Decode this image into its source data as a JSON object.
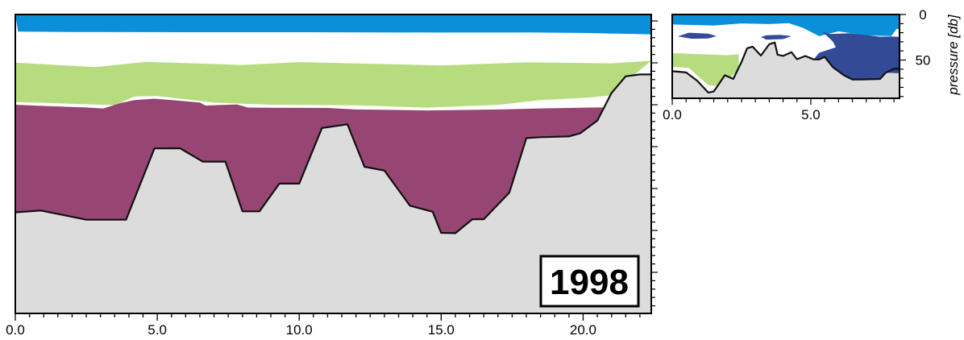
{
  "chart_data": [
    {
      "type": "area",
      "panel": "main",
      "x_tick_labels": [
        "0.0",
        "5.0",
        "10.0",
        "15.0",
        "20.0"
      ],
      "x_ticks": [
        0,
        5,
        10,
        15,
        20
      ],
      "xlim": [
        0,
        22.4
      ],
      "year_label": "1998",
      "colors": {
        "blue": "#0a8fd8",
        "green": "#b7dc7e",
        "purple": "#974673",
        "bottom": "#dcdcdc",
        "line": "#111111"
      },
      "layers": {
        "blue_bottom": [
          [
            0.1,
            21.2
          ],
          [
            2,
            21.7
          ],
          [
            6,
            22.0
          ],
          [
            10,
            22.0
          ],
          [
            15,
            22.4
          ],
          [
            18,
            22.3
          ],
          [
            20,
            22.9
          ],
          [
            22.4,
            24.6
          ]
        ],
        "green_top": [
          [
            0,
            59.8
          ],
          [
            2.8,
            65.3
          ],
          [
            4.6,
            58.8
          ],
          [
            8,
            62.6
          ],
          [
            10,
            59.1
          ],
          [
            15,
            63.2
          ],
          [
            18,
            59.4
          ],
          [
            21,
            60.6
          ],
          [
            22.4,
            57.5
          ]
        ],
        "green_bottom": [
          [
            0,
            108.7
          ],
          [
            1,
            109.6
          ],
          [
            2.5,
            111.4
          ],
          [
            3.5,
            112.4
          ],
          [
            4.2,
            101.8
          ],
          [
            5,
            101.2
          ],
          [
            7,
            109.4
          ],
          [
            9,
            112.0
          ],
          [
            12,
            112.7
          ],
          [
            14.5,
            115.6
          ],
          [
            17,
            112.1
          ],
          [
            18.5,
            106.3
          ],
          [
            20.2,
            103.1
          ],
          [
            20.9,
            100.7
          ]
        ],
        "purple_top": [
          [
            0,
            112.0
          ],
          [
            1,
            113.5
          ],
          [
            2.5,
            115.4
          ],
          [
            3.1,
            116.6
          ],
          [
            3.7,
            109.9
          ],
          [
            4.2,
            106.2
          ],
          [
            4.9,
            104.5
          ],
          [
            5.6,
            106.5
          ],
          [
            6.5,
            109.2
          ],
          [
            6.7,
            113.0
          ],
          [
            7.8,
            111.6
          ],
          [
            8.2,
            115.5
          ],
          [
            9,
            115.7
          ],
          [
            11,
            116.0
          ],
          [
            12,
            117.9
          ],
          [
            13,
            118.2
          ],
          [
            14.5,
            119.1
          ],
          [
            17,
            117.9
          ],
          [
            18.3,
            116.8
          ],
          [
            20,
            115.6
          ],
          [
            20.9,
            115.3
          ]
        ],
        "bottom_top": [
          [
            0,
            245.5
          ],
          [
            0.9,
            243.3
          ],
          [
            2.5,
            254.7
          ],
          [
            3.9,
            254.7
          ],
          [
            4.9,
            166.2
          ],
          [
            5.8,
            166.0
          ],
          [
            6.6,
            182.6
          ],
          [
            7.4,
            182.6
          ],
          [
            8,
            244.3
          ],
          [
            8.6,
            244.3
          ],
          [
            9.3,
            209.9
          ],
          [
            10,
            209.9
          ],
          [
            10.8,
            140.9
          ],
          [
            11.7,
            136.3
          ],
          [
            12.3,
            189.0
          ],
          [
            13,
            193.7
          ],
          [
            13.9,
            237.3
          ],
          [
            14.7,
            244.8
          ],
          [
            15,
            271.0
          ],
          [
            15.5,
            271.4
          ],
          [
            16.1,
            254.1
          ],
          [
            16.5,
            254.1
          ],
          [
            17.4,
            221.1
          ],
          [
            18,
            153.4
          ],
          [
            18.5,
            152.3
          ],
          [
            19.5,
            151.3
          ],
          [
            19.9,
            147.4
          ],
          [
            20.5,
            131.6
          ],
          [
            21,
            97.4
          ],
          [
            21.5,
            76.7
          ],
          [
            22,
            74.4
          ],
          [
            22.4,
            74.4
          ]
        ]
      }
    },
    {
      "type": "area",
      "panel": "inset",
      "x_tick_labels": [
        "0.0",
        "5.0"
      ],
      "x_ticks": [
        0,
        5
      ],
      "xlim": [
        0,
        8.2
      ],
      "y_tick_labels": [
        "0",
        "50"
      ],
      "y_ticks": [
        0,
        50
      ],
      "ylim": [
        0,
        92
      ],
      "ylabel": "pressure [db]",
      "colors": {
        "blue": "#0a8fd8",
        "dark_blue": "#334a97",
        "green": "#b7dc7e",
        "bottom": "#dcdcdc",
        "line": "#111111"
      },
      "layers": {
        "blue_bottom": [
          [
            0,
            11
          ],
          [
            1.5,
            12.0
          ],
          [
            2.5,
            9.8
          ],
          [
            3.5,
            10.5
          ],
          [
            4.2,
            9.5
          ],
          [
            4.7,
            14.5
          ],
          [
            5.3,
            23.8
          ],
          [
            6,
            18.5
          ],
          [
            7,
            23.0
          ],
          [
            7.9,
            23.6
          ],
          [
            8.1,
            15.6
          ],
          [
            8.2,
            16.5
          ]
        ],
        "green_top": [
          [
            0,
            42.4
          ],
          [
            2,
            44.8
          ],
          [
            2.4,
            43.6
          ]
        ],
        "green_bottom": [
          [
            0,
            57.2
          ],
          [
            0.6,
            58.6
          ],
          [
            1.3,
            77.7
          ],
          [
            1.8,
            78.9
          ],
          [
            2.4,
            59.7
          ]
        ],
        "bottom_top": [
          [
            0,
            62.3
          ],
          [
            0.5,
            63.6
          ],
          [
            0.9,
            72.8
          ],
          [
            1.3,
            85.7
          ],
          [
            1.5,
            84.5
          ],
          [
            1.9,
            66.7
          ],
          [
            2.2,
            70.8
          ],
          [
            2.5,
            52.1
          ],
          [
            2.7,
            37.1
          ],
          [
            2.9,
            35.3
          ],
          [
            3.2,
            45.1
          ],
          [
            3.5,
            32.6
          ],
          [
            3.7,
            30.7
          ],
          [
            3.8,
            44.1
          ],
          [
            4,
            45.5
          ],
          [
            4.3,
            41.4
          ],
          [
            4.5,
            49.1
          ],
          [
            4.8,
            45.6
          ],
          [
            5.1,
            49.3
          ],
          [
            5.3,
            49.4
          ],
          [
            5.5,
            46.5
          ],
          [
            5.8,
            58.0
          ],
          [
            6,
            62.4
          ],
          [
            6.2,
            66.8
          ],
          [
            6.5,
            71.3
          ],
          [
            6.8,
            71.3
          ],
          [
            7.5,
            70.8
          ],
          [
            7.7,
            64.0
          ],
          [
            8,
            59.6
          ],
          [
            8.2,
            59.6
          ]
        ],
        "dark_blue_main": [
          [
            5.4,
            18.8
          ],
          [
            5.7,
            21.5
          ],
          [
            6.4,
            20.5
          ],
          [
            7.5,
            24.4
          ],
          [
            7.9,
            24.1
          ],
          [
            8.2,
            24.7
          ],
          [
            8.2,
            64.5
          ],
          [
            7.7,
            64.0
          ],
          [
            7.5,
            70.8
          ],
          [
            6.8,
            71.3
          ],
          [
            6.5,
            71.3
          ],
          [
            6.2,
            66.8
          ],
          [
            6.0,
            62.4
          ],
          [
            5.8,
            58.0
          ],
          [
            5.5,
            46.5
          ],
          [
            5.3,
            49.4
          ],
          [
            5.1,
            49.3
          ],
          [
            5.3,
            42
          ],
          [
            5.9,
            36
          ],
          [
            5.8,
            30
          ],
          [
            5.6,
            24
          ]
        ],
        "dark_blue_blob1": [
          [
            0.2,
            24.0
          ],
          [
            0.6,
            20.0
          ],
          [
            1.3,
            21.0
          ],
          [
            1.6,
            23.6
          ],
          [
            1.3,
            26.4
          ],
          [
            0.7,
            26.6
          ]
        ],
        "dark_blue_blob2": [
          [
            3.2,
            24.8
          ],
          [
            3.4,
            22.7
          ],
          [
            3.9,
            22.3
          ],
          [
            4.3,
            23.8
          ],
          [
            4.0,
            27.0
          ],
          [
            3.4,
            27.6
          ]
        ]
      }
    }
  ]
}
